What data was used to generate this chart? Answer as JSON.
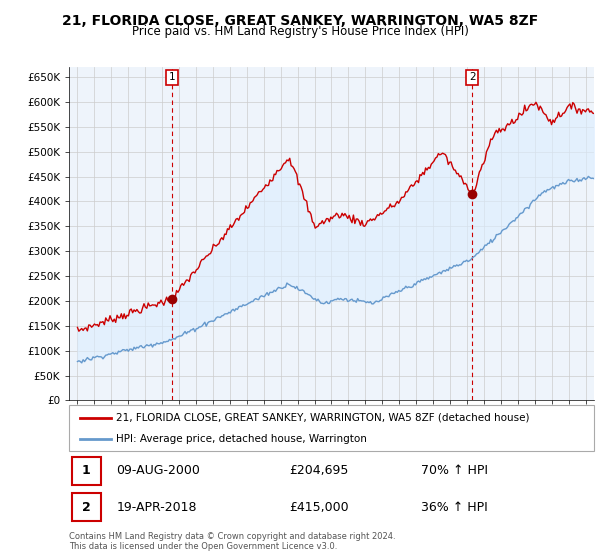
{
  "title": "21, FLORIDA CLOSE, GREAT SANKEY, WARRINGTON, WA5 8ZF",
  "subtitle": "Price paid vs. HM Land Registry's House Price Index (HPI)",
  "title_fontsize": 10,
  "subtitle_fontsize": 8.5,
  "ylim": [
    0,
    670000
  ],
  "yticks": [
    0,
    50000,
    100000,
    150000,
    200000,
    250000,
    300000,
    350000,
    400000,
    450000,
    500000,
    550000,
    600000,
    650000
  ],
  "ytick_labels": [
    "£0",
    "£50K",
    "£100K",
    "£150K",
    "£200K",
    "£250K",
    "£300K",
    "£350K",
    "£400K",
    "£450K",
    "£500K",
    "£550K",
    "£600K",
    "£650K"
  ],
  "sale1_date_num": 2000.6,
  "sale1_price": 204695,
  "sale2_date_num": 2018.3,
  "sale2_price": 415000,
  "sale1_date_str": "09-AUG-2000",
  "sale1_price_str": "£204,695",
  "sale1_hpi": "70% ↑ HPI",
  "sale2_date_str": "19-APR-2018",
  "sale2_price_str": "£415,000",
  "sale2_hpi": "36% ↑ HPI",
  "line1_color": "#cc0000",
  "line2_color": "#6699cc",
  "fill_color": "#ddeeff",
  "marker_color": "#990000",
  "vline_color": "#cc0000",
  "background_color": "#ffffff",
  "plot_bg_color": "#eef4fb",
  "grid_color": "#cccccc",
  "legend1_label": "21, FLORIDA CLOSE, GREAT SANKEY, WARRINGTON, WA5 8ZF (detached house)",
  "legend2_label": "HPI: Average price, detached house, Warrington",
  "footer_text": "Contains HM Land Registry data © Crown copyright and database right 2024.\nThis data is licensed under the Open Government Licence v3.0.",
  "xlim_start": 1994.5,
  "xlim_end": 2025.5,
  "xtick_start": 1995,
  "xtick_end": 2025
}
